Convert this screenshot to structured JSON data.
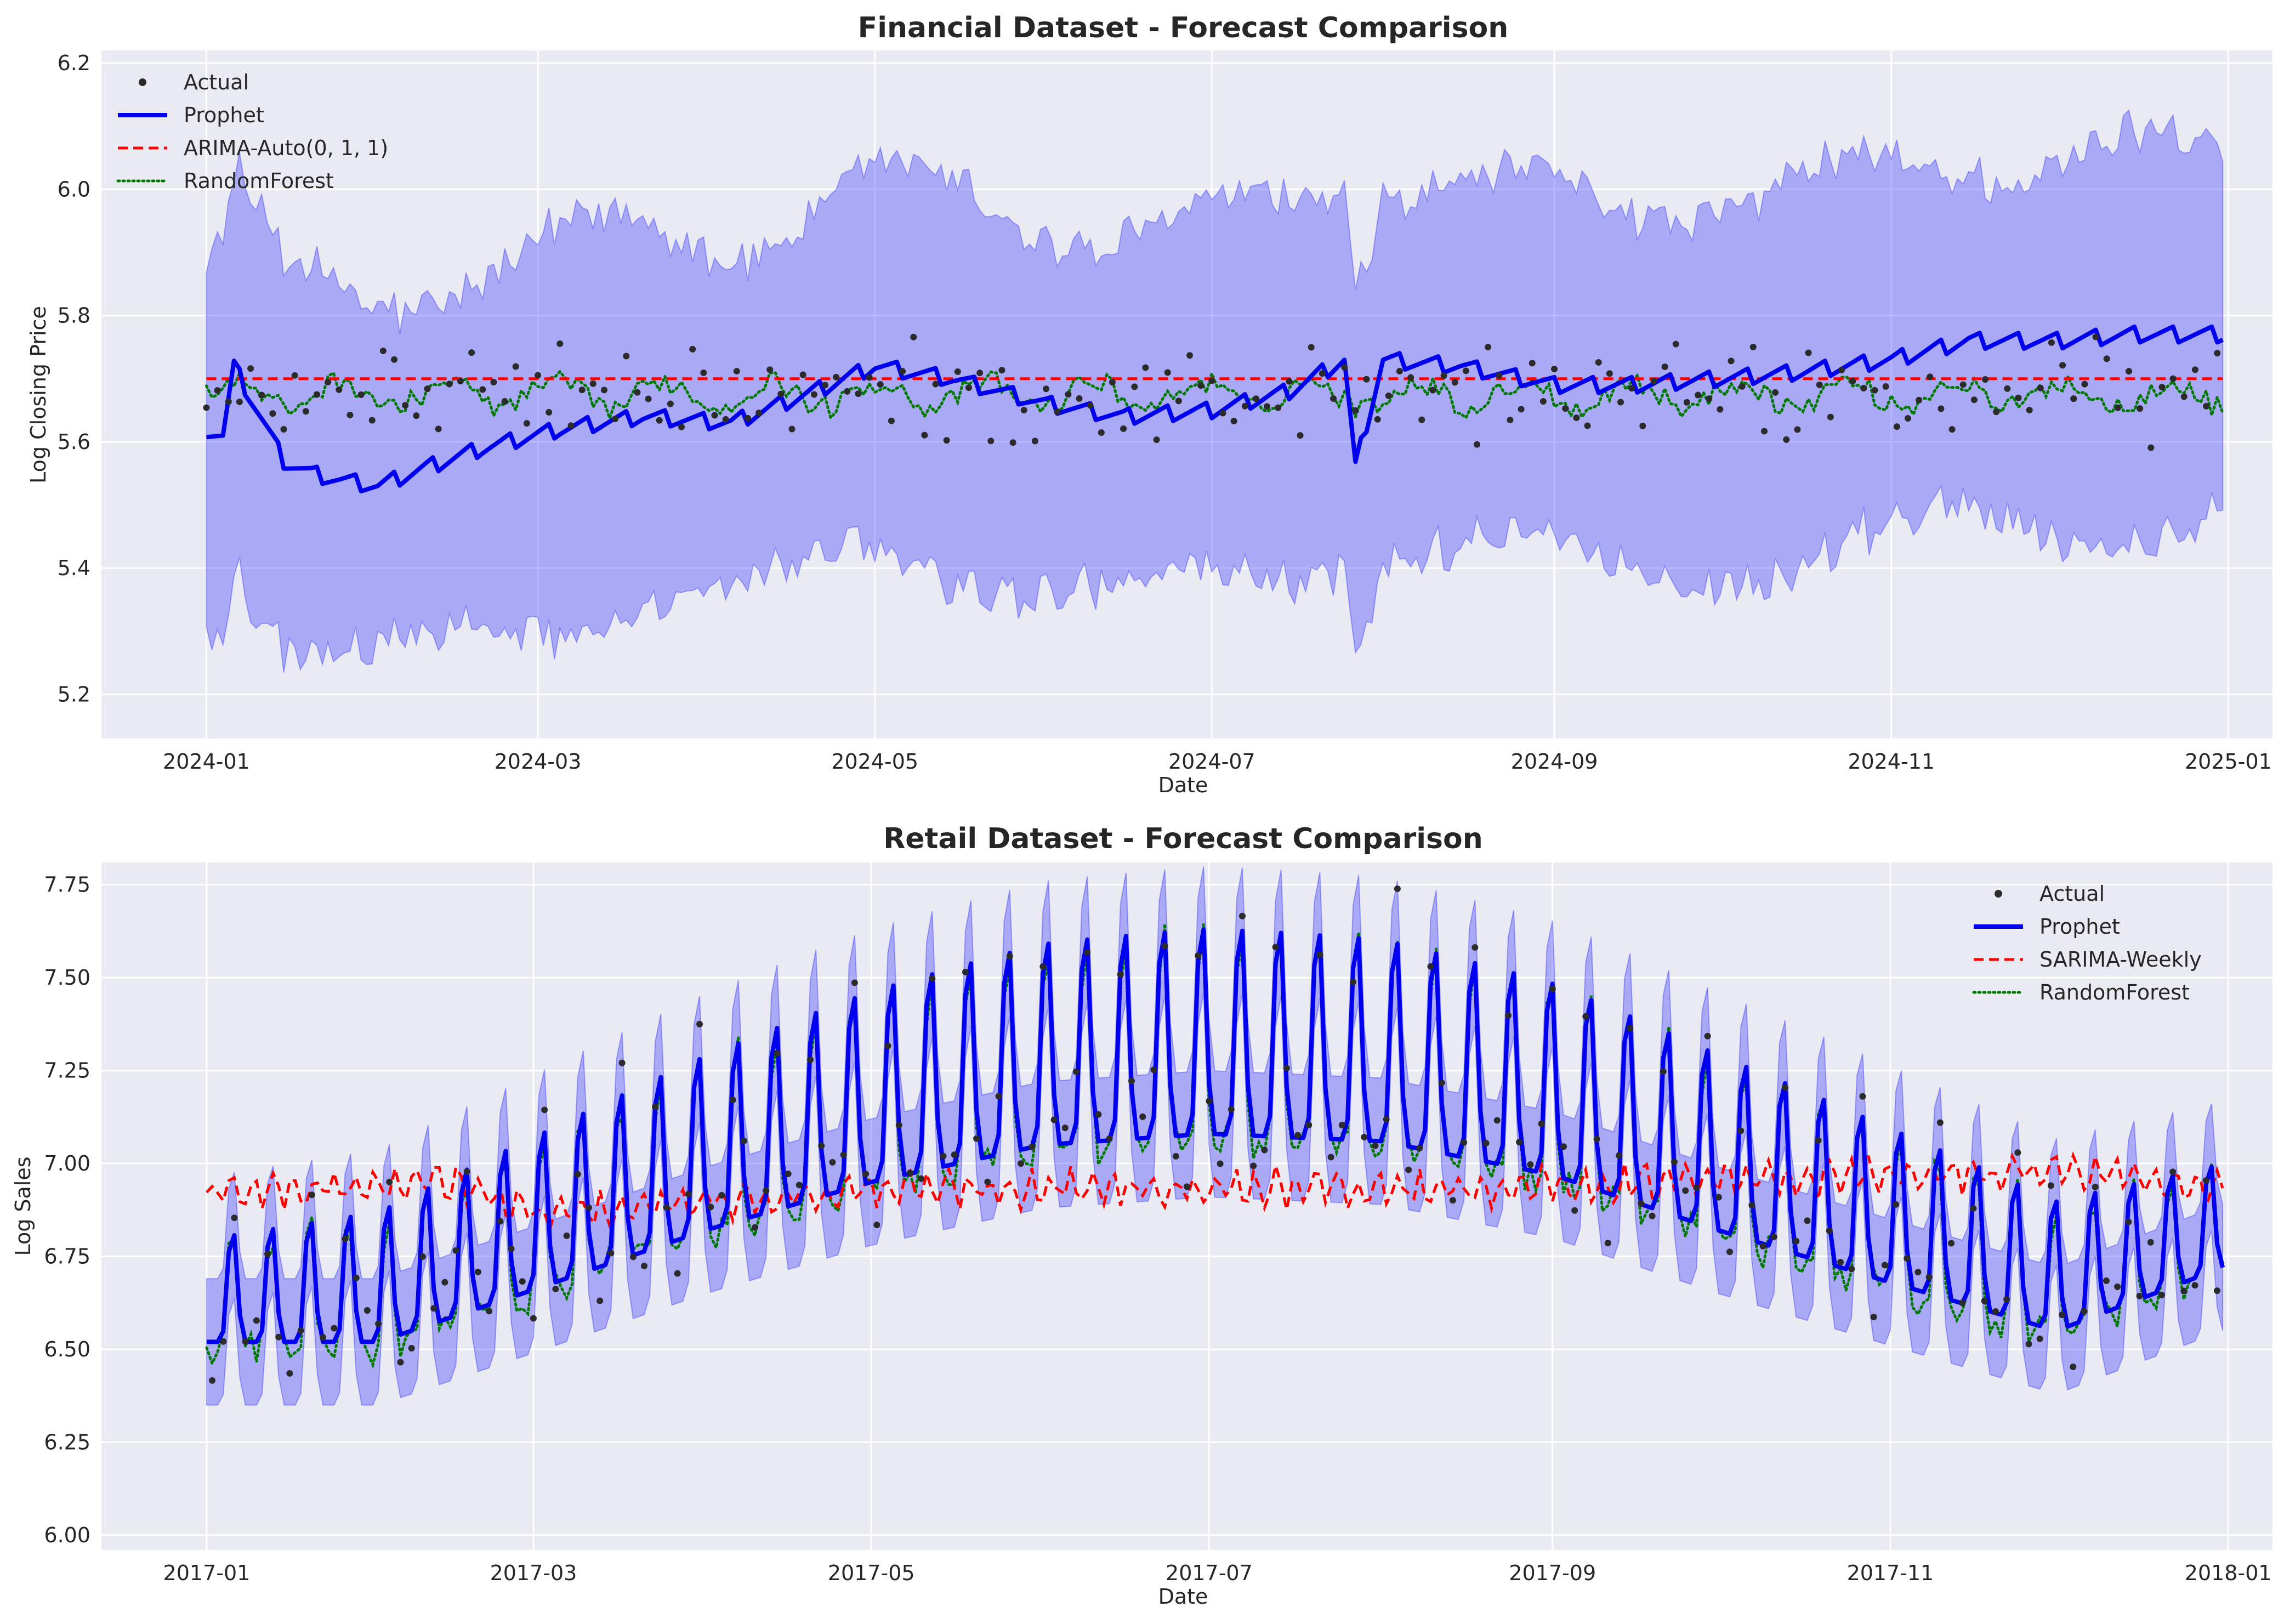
{
  "chart_data": [
    {
      "type": "line",
      "title": "Financial Dataset - Forecast Comparison",
      "xlabel": "Date",
      "ylabel": "Log Closing Price",
      "x_range": [
        "2023-12-13",
        "2025-01-09"
      ],
      "ylim": [
        5.13,
        6.22
      ],
      "x_ticks": [
        "2024-01",
        "2024-03",
        "2024-05",
        "2024-07",
        "2024-09",
        "2024-11",
        "2025-01"
      ],
      "y_ticks": [
        "5.2",
        "5.4",
        "5.6",
        "5.8",
        "6.0",
        "6.2"
      ],
      "grid": true,
      "legend": "top-left",
      "forecast_start": "2024-01-01",
      "forecast_end": "2024-12-31",
      "series": [
        {
          "name": "Actual",
          "style": "points",
          "color": "#2b2b2b",
          "mean": 5.675,
          "spread": 0.06
        },
        {
          "name": "Prophet",
          "style": "solid",
          "color": "#0000ee",
          "knots_x": [
            "2024-01-01",
            "2024-01-04",
            "2024-01-06",
            "2024-01-15",
            "2024-01-20",
            "2024-01-25",
            "2024-02-01",
            "2024-02-10",
            "2024-02-20",
            "2024-03-05",
            "2024-03-20",
            "2024-04-05",
            "2024-04-20",
            "2024-05-01",
            "2024-05-15",
            "2024-06-01",
            "2024-06-15",
            "2024-07-01",
            "2024-07-15",
            "2024-07-25",
            "2024-07-27",
            "2024-08-01",
            "2024-08-15",
            "2024-09-01",
            "2024-09-15",
            "2024-10-01",
            "2024-10-15",
            "2024-11-01",
            "2024-11-15",
            "2024-12-01",
            "2024-12-15",
            "2024-12-31"
          ],
          "knots_y": [
            5.62,
            5.61,
            5.72,
            5.57,
            5.55,
            5.54,
            5.53,
            5.56,
            5.59,
            5.62,
            5.64,
            5.63,
            5.68,
            5.72,
            5.7,
            5.66,
            5.64,
            5.65,
            5.68,
            5.73,
            5.56,
            5.73,
            5.72,
            5.69,
            5.69,
            5.7,
            5.71,
            5.73,
            5.76,
            5.76,
            5.77,
            5.77
          ],
          "weekly_amplitude": 0.025
        },
        {
          "name": "ARIMA-Auto(0, 1, 1)",
          "style": "dashed",
          "color": "#ff0000",
          "constant": 5.7
        },
        {
          "name": "RandomForest",
          "style": "dotted",
          "color": "#007a00",
          "mean": 5.675,
          "spread": 0.035
        },
        {
          "name": "Prophet interval",
          "style": "band",
          "color": "#0000ff",
          "half_width": 0.27
        }
      ]
    },
    {
      "type": "line",
      "title": "Retail Dataset - Forecast Comparison",
      "xlabel": "Date",
      "ylabel": "Log Sales",
      "x_range": [
        "2016-12-13",
        "2018-01-09"
      ],
      "ylim": [
        5.96,
        7.81
      ],
      "x_ticks": [
        "2017-01",
        "2017-03",
        "2017-05",
        "2017-07",
        "2017-09",
        "2017-11",
        "2018-01"
      ],
      "y_ticks": [
        "6.00",
        "6.25",
        "6.50",
        "6.75",
        "7.00",
        "7.25",
        "7.50",
        "7.75"
      ],
      "grid": true,
      "legend": "top-right",
      "forecast_start": "2017-01-01",
      "forecast_end": "2017-12-31",
      "series": [
        {
          "name": "Actual",
          "style": "points",
          "color": "#2b2b2b"
        },
        {
          "name": "Prophet",
          "style": "solid",
          "color": "#0000ee",
          "baseline_knots_x": [
            "2017-01-01",
            "2017-02-01",
            "2017-03-01",
            "2017-04-01",
            "2017-05-01",
            "2017-06-01",
            "2017-07-01",
            "2017-08-01",
            "2017-09-01",
            "2017-10-01",
            "2017-11-01",
            "2017-12-01",
            "2017-12-31"
          ],
          "baseline_knots_y": [
            6.52,
            6.52,
            6.66,
            6.82,
            6.95,
            7.05,
            7.08,
            7.06,
            6.97,
            6.82,
            6.68,
            6.55,
            6.72
          ],
          "weekly_peak": 0.5
        },
        {
          "name": "SARIMA-Weekly",
          "style": "dashed",
          "color": "#ff0000",
          "knots_x": [
            "2017-01-01",
            "2017-02-15",
            "2017-03-01",
            "2017-05-01",
            "2017-07-01",
            "2017-08-01",
            "2017-09-01",
            "2017-10-15",
            "2017-12-01",
            "2017-12-31"
          ],
          "knots_y": [
            6.92,
            6.95,
            6.86,
            6.93,
            6.94,
            6.93,
            6.94,
            6.96,
            6.98,
            6.93
          ]
        },
        {
          "name": "RandomForest",
          "style": "dotted",
          "color": "#007a00"
        },
        {
          "name": "Prophet interval",
          "style": "band",
          "color": "#0000ff",
          "half_width": 0.17
        }
      ]
    }
  ]
}
